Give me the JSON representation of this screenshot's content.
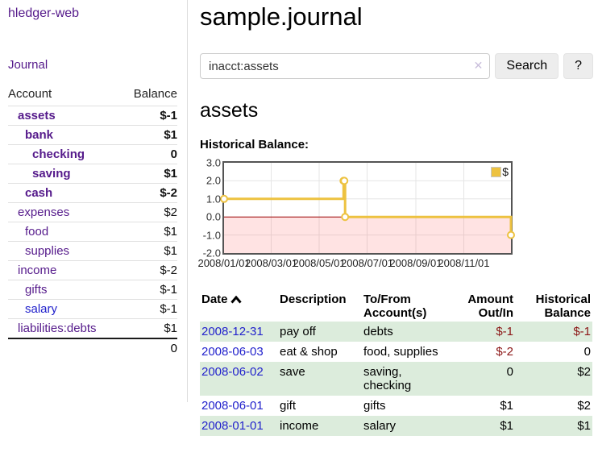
{
  "sidebar": {
    "app_title": "hledger-web",
    "journal_link": "Journal",
    "accounts": {
      "col_account": "Account",
      "col_balance": "Balance",
      "rows": [
        {
          "name": "assets",
          "balance": "$-1"
        },
        {
          "name": "bank",
          "balance": "$1"
        },
        {
          "name": "checking",
          "balance": "0"
        },
        {
          "name": "saving",
          "balance": "$1"
        },
        {
          "name": "cash",
          "balance": "$-2"
        },
        {
          "name": "expenses",
          "balance": "$2"
        },
        {
          "name": "food",
          "balance": "$1"
        },
        {
          "name": "supplies",
          "balance": "$1"
        },
        {
          "name": "income",
          "balance": "$-2"
        },
        {
          "name": "gifts",
          "balance": "$-1"
        },
        {
          "name": "salary",
          "balance": "$-1"
        },
        {
          "name": "liabilities:debts",
          "balance": "$1"
        }
      ],
      "total": "0"
    }
  },
  "main": {
    "title": "sample.journal",
    "account_heading": "assets",
    "chart_label": "Historical Balance:"
  },
  "search": {
    "value": "inacct:assets",
    "placeholder": "",
    "clear_icon": "✕",
    "button_label": "Search",
    "help_label": "?"
  },
  "chart_data": {
    "type": "line",
    "step": true,
    "title": "Historical Balance",
    "series": [
      {
        "name": "$",
        "color": "#EDC240",
        "points": [
          [
            "2008-01-01",
            1
          ],
          [
            "2008-06-01",
            2
          ],
          [
            "2008-06-02",
            2
          ],
          [
            "2008-06-03",
            0
          ],
          [
            "2008-12-31",
            -1
          ]
        ]
      }
    ],
    "xlim": [
      "2008-01-01",
      "2008-12-31"
    ],
    "ylim": [
      -2,
      3
    ],
    "x_ticks": [
      {
        "date": "2008-01-01",
        "label": "2008/01/01"
      },
      {
        "date": "2008-03-01",
        "label": "2008/03/01"
      },
      {
        "date": "2008-05-01",
        "label": "2008/05/01"
      },
      {
        "date": "2008-07-01",
        "label": "2008/07/01"
      },
      {
        "date": "2008-09-01",
        "label": "2008/09/01"
      },
      {
        "date": "2008-11-01",
        "label": "2008/11/01"
      }
    ],
    "y_ticks": [
      {
        "value": 3,
        "label": "3.0"
      },
      {
        "value": 2,
        "label": "2.0"
      },
      {
        "value": 1,
        "label": "1.0"
      },
      {
        "value": 0,
        "label": "0.0"
      },
      {
        "value": -1,
        "label": "-1.0"
      },
      {
        "value": -2,
        "label": "-2.0"
      }
    ],
    "legend_position": "top-right",
    "grid": true,
    "colors": {
      "grid": "#e5e5e5",
      "zero_line": "#990000",
      "negative_region": "rgba(255,80,80,0.16)",
      "plot_border": "#545454",
      "marker_fill": "#ffffff"
    }
  },
  "table": {
    "columns": [
      "Date",
      "Description",
      "To/From Account(s)",
      "Amount Out/In",
      "Historical Balance"
    ],
    "rows": [
      {
        "date": "2008-12-31",
        "description": "pay off",
        "accounts": "debts",
        "amount": "$-1",
        "balance": "$-1"
      },
      {
        "date": "2008-06-03",
        "description": "eat & shop",
        "accounts": "food, supplies",
        "amount": "$-2",
        "balance": "0"
      },
      {
        "date": "2008-06-02",
        "description": "save",
        "accounts": "saving, checking",
        "amount": "0",
        "balance": "$2"
      },
      {
        "date": "2008-06-01",
        "description": "gift",
        "accounts": "gifts",
        "amount": "$1",
        "balance": "$2"
      },
      {
        "date": "2008-01-01",
        "description": "income",
        "accounts": "salary",
        "amount": "$1",
        "balance": "$1"
      }
    ]
  }
}
